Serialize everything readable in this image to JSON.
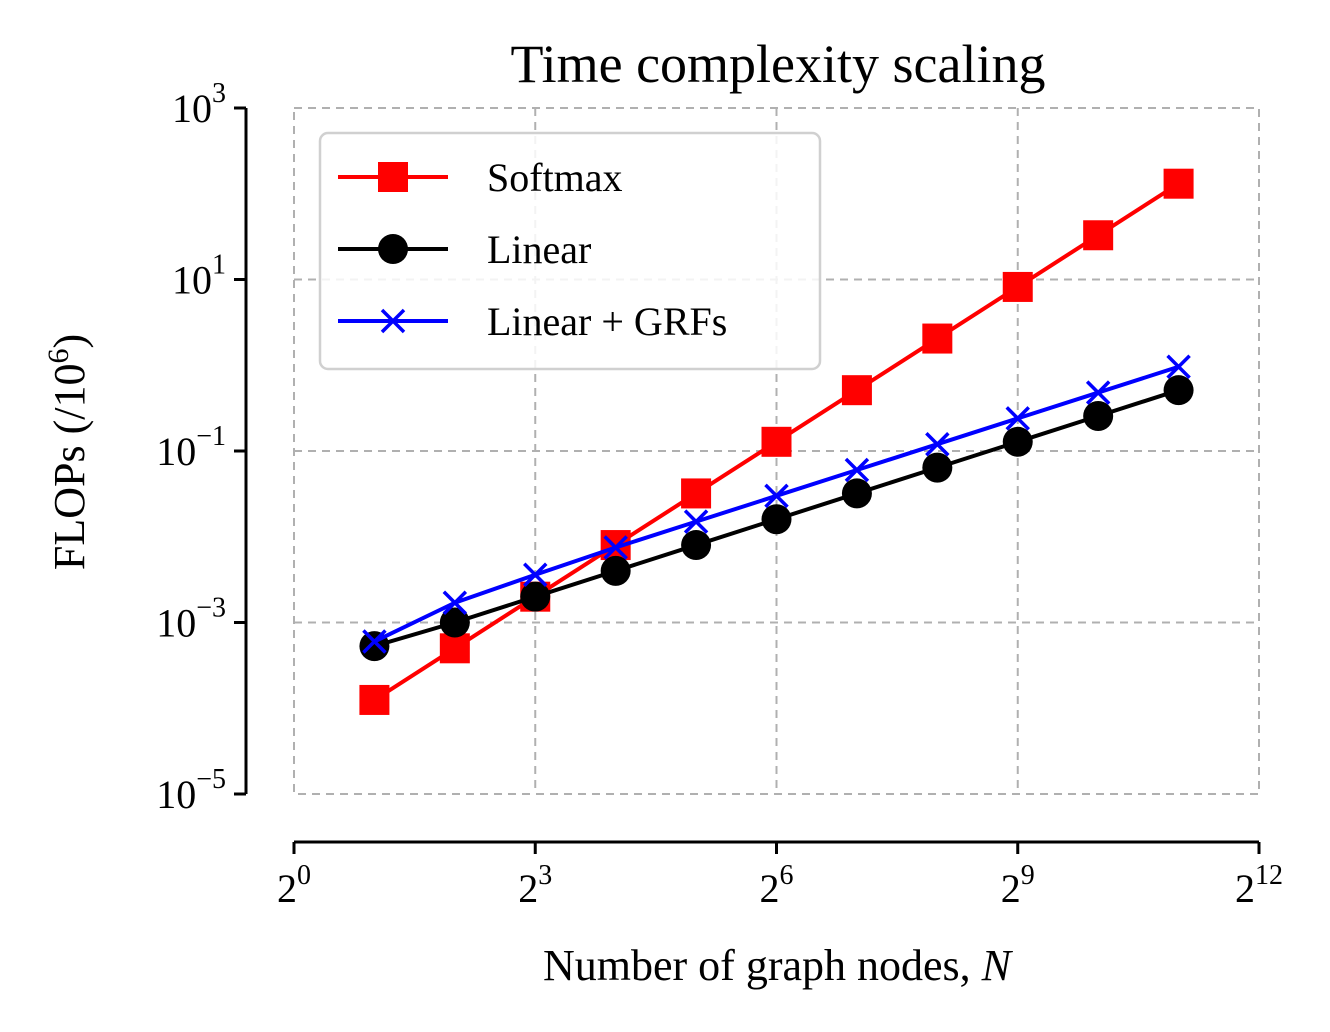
{
  "chart_data": {
    "type": "line",
    "title": "Time complexity scaling",
    "xlabel": "Number of graph nodes, ",
    "xlabel_var": "N",
    "ylabel": "FLOPs (/10",
    "ylabel_exp": "6",
    "ylabel_tail": ")",
    "x_scale": "log2",
    "y_scale": "log10",
    "xlim": [
      1,
      4096
    ],
    "ylim": [
      1e-05,
      1000
    ],
    "x_ticks": [
      {
        "value": 1,
        "base": "2",
        "exp": "0"
      },
      {
        "value": 8,
        "base": "2",
        "exp": "3"
      },
      {
        "value": 64,
        "base": "2",
        "exp": "6"
      },
      {
        "value": 512,
        "base": "2",
        "exp": "9"
      },
      {
        "value": 4096,
        "base": "2",
        "exp": "12"
      }
    ],
    "y_ticks": [
      {
        "value": 1000,
        "base": "10",
        "exp": "3"
      },
      {
        "value": 10,
        "base": "10",
        "exp": "1"
      },
      {
        "value": 0.1,
        "base": "10",
        "exp": "−1"
      },
      {
        "value": 0.001,
        "base": "10",
        "exp": "−3"
      },
      {
        "value": 1e-05,
        "base": "10",
        "exp": "−5"
      }
    ],
    "grid": true,
    "legend_position": "top-left",
    "x": [
      2,
      4,
      8,
      16,
      32,
      64,
      128,
      256,
      512,
      1024,
      2048
    ],
    "series": [
      {
        "name": "Softmax",
        "color": "#ff0000",
        "marker": "square",
        "values": [
          0.000125,
          0.0005,
          0.002,
          0.008,
          0.032,
          0.128,
          0.512,
          2.048,
          8.19,
          32.8,
          131
        ]
      },
      {
        "name": "Linear",
        "color": "#000000",
        "marker": "circle",
        "values": [
          0.00053,
          0.001,
          0.002,
          0.004,
          0.008,
          0.016,
          0.032,
          0.064,
          0.128,
          0.256,
          0.512
        ]
      },
      {
        "name": "Linear + GRFs",
        "color": "#0000ff",
        "marker": "x",
        "values": [
          0.0006,
          0.0017,
          0.0036,
          0.0075,
          0.015,
          0.03,
          0.06,
          0.12,
          0.24,
          0.48,
          0.96
        ]
      }
    ]
  }
}
